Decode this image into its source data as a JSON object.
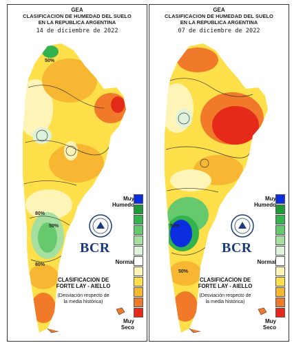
{
  "panels": [
    {
      "org": "GEA",
      "title_line1": "CLASIFICACION DE HUMEDAD DEL SUELO",
      "title_line2": "EN LA REPUBLICA ARGENTINA",
      "date": "14 de diciembre de 2022",
      "contour_labels": [
        "50%",
        "80%",
        "50%",
        "80%"
      ],
      "legend_top_line1": "Muy",
      "legend_top_line2": "Humedo",
      "legend_mid": "Normal",
      "legend_bottom_line1": "Muy",
      "legend_bottom_line2": "Seco",
      "method_line1": "CLASIFICACION DE",
      "method_line2": "FORTE LAY - AIELLO",
      "method_note_line1": "(Desviación respecto de",
      "method_note_line2": "la media histórica)",
      "logo_text": "BCR"
    },
    {
      "org": "GEA",
      "title_line1": "CLASIFICACION DE HUMEDAD DEL SUELO",
      "title_line2": "EN LA REPUBLICA ARGENTINA",
      "date": "07 de diciembre de 2022",
      "contour_labels": [
        "50%",
        "50%"
      ],
      "legend_top_line1": "Muy",
      "legend_top_line2": "Humedo",
      "legend_mid": "Normal",
      "legend_bottom_line1": "Muy",
      "legend_bottom_line2": "Seco",
      "method_line1": "CLASIFICACION DE",
      "method_line2": "FORTE LAY - AIELLO",
      "method_note_line1": "(Desviación respecto de",
      "method_note_line2": "la media histórica)",
      "logo_text": "BCR"
    }
  ],
  "legend_colors": [
    "#0a2de0",
    "#1f9a3a",
    "#33b34d",
    "#66c96e",
    "#a6e0a0",
    "#dff3dc",
    "#ffffff",
    "#fff4b8",
    "#ffe04a",
    "#f7b733",
    "#f07a2a",
    "#e52a1a"
  ]
}
